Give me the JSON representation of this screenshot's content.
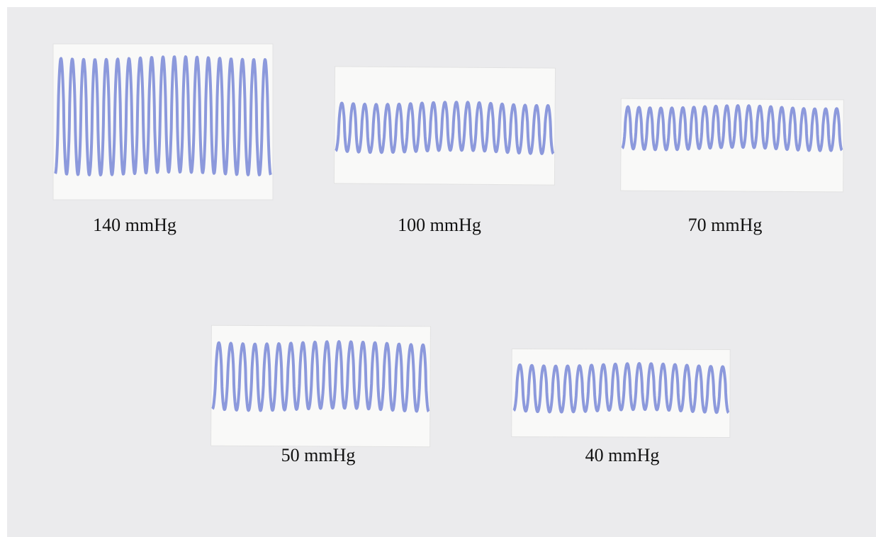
{
  "panels": [
    {
      "label": "140 mmHg"
    },
    {
      "label": "100 mmHg"
    },
    {
      "label": "70 mmHg"
    },
    {
      "label": "50 mmHg"
    },
    {
      "label": "40 mmHg"
    }
  ]
}
